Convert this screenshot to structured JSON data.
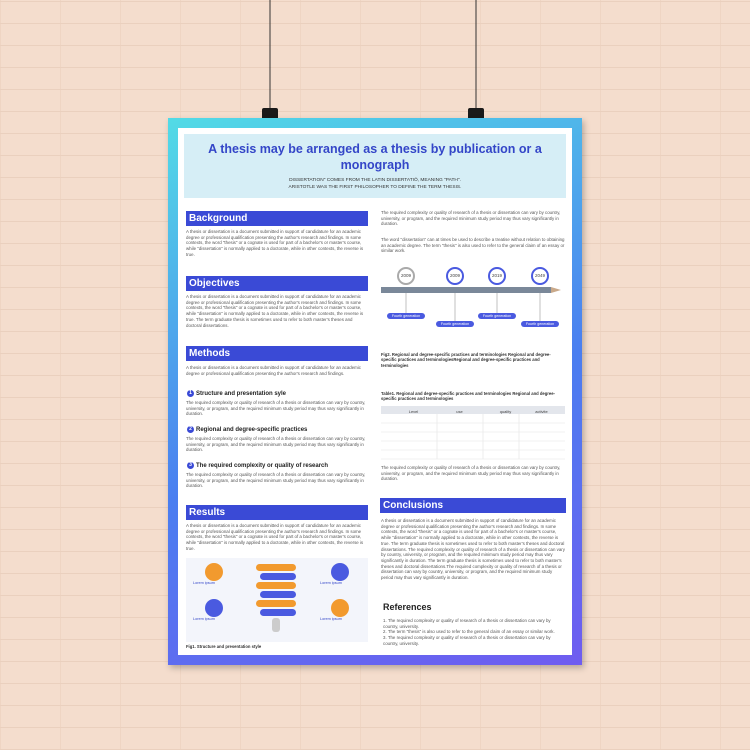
{
  "header": {
    "title": "A thesis may be arranged as a thesis by publication or a monograph",
    "subtitle": [
      "DISSERTATION\" COMES FROM THE LATIN DISSERTATIŌ, MEANING \"PATH\".",
      "ARISTOTLE WAS THE FIRST PHILOSOPHER TO DEFINE THE TERM THESIS."
    ]
  },
  "background": {
    "heading": "Background",
    "body": "A thesis or dissertation is a document submitted in support of candidature for an academic degree or professional qualification presenting the author's research and findings. In some contexts, the word \"thesis\" or a cognate is used for part of a bachelor's or master's course, while \"dissertation\" is normally applied to a doctorate, while in other contexts, the reverse is true."
  },
  "objectives": {
    "heading": "Objectives",
    "body": "A thesis or dissertation is a document submitted in support of candidature for an academic degree or professional qualification presenting the author's research and findings. In some contexts, the word \"thesis\" or a cognate is used for part of a bachelor's or master's course, while \"dissertation\" is normally applied to a doctorate, while in other contexts, the reverse is true. The term graduate thesis is sometimes used to refer to both master's theses and doctoral dissertations."
  },
  "methods": {
    "heading": "Methods",
    "intro": "A thesis or dissertation is a document submitted in support of candidature for an academic degree or professional qualification presenting the author's research and findings.",
    "items": [
      {
        "num": "1",
        "title": "Structure and presentation syle",
        "body": "The required complexity or quality of research of a thesis or dissertation can vary by country, university, or program, and the required minimum study period may thus vary significantly in duration."
      },
      {
        "num": "2",
        "title": "Regional and degree-specific practices",
        "body": "The required complexity or quality of research of a thesis or dissertation can vary by country, university, or program, and the required minimum study period may thus vary significantly in duration."
      },
      {
        "num": "3",
        "title": "The required complexity or quality of research",
        "body": "The required complexity or quality of research of a thesis or dissertation can vary by country, university, or program, and the required minimum study period may thus vary significantly in duration."
      }
    ]
  },
  "results": {
    "heading": "Results",
    "body": "A thesis or dissertation is a document submitted in support of candidature for an academic degree or professional qualification presenting the author's research and findings. In some contexts, the word \"thesis\" or a cognate is used for part of a bachelor's or master's course, while \"dissertation\" is normally applied to a doctorate, while in other contexts, the reverse is true.",
    "figure": {
      "labels": [
        "Lorem ipsum",
        "Lorem ipsum",
        "Lorem ipsum",
        "Lorem ipsum"
      ],
      "caption": "Fig1. Structure and presentation style"
    }
  },
  "right": {
    "paragraphs": [
      "The required complexity or quality of research of a thesis or dissertation can vary by country, university, or program, and the required minimum study period may thus vary significantly in duration.",
      "The word \"dissertation\" can at times be used to describe a treatise without relation to obtaining an academic degree. The term \"thesis\" is also used to refer to the general claim of an essay or similar work.",
      "The required complexity or quality of research of a thesis or dissertation can vary by country, university, or program, and the required minimum study period may thus vary significantly in duration."
    ],
    "timeline": [
      {
        "year": "2009",
        "label": "Fourth generation"
      },
      {
        "year": "2009",
        "label": "Fourth generation"
      },
      {
        "year": "2019",
        "label": "Fourth generation"
      },
      {
        "year": "2049",
        "label": "Fourth generation"
      }
    ],
    "figure_caption": "Fig2. Regional and degree-specific practices and terminologies Regional and degree-specific practices and terminologiesRegional and degree-specific practices and terminologies",
    "table": {
      "caption": "Table1. Regional and degree-specific practices and terminologies Regional and degree-specific practices and terminologies",
      "headers": [
        "Level",
        "use",
        "quality",
        "activite"
      ]
    }
  },
  "conclusions": {
    "heading": "Conclusions",
    "body": "A thesis or dissertation is a document submitted in support of candidature for an academic degree or professional qualification presenting the author's research and findings. In some contexts, the word \"thesis\" or a cognate is used for part of a bachelor's or master's course, while \"dissertation\" is normally applied to a doctorate, while in other contexts, the reverse is true. The term graduate thesis is sometimes used to refer to both master's theses and doctoral dissertations. The required complexity or quality of research of a thesis or dissertation can vary by country, university, or program, and the required minimum study period may thus vary significantly in duration. The term graduate thesis is sometimes used to refer to both master's theses and doctoral dissertations.The required complexity or quality of research of a thesis or dissertation can vary by country, university, or program, and the required minimum study period may thus vary significantly in duration."
  },
  "references": {
    "heading": "References",
    "items": [
      {
        "num": "1.",
        "text": "The required complexity or quality of research of a thesis or dissertation can vary by country, university."
      },
      {
        "num": "2.",
        "text": "The term \"thesis\" is also used to refer to the general claim of an essay or similar work."
      },
      {
        "num": "3.",
        "text": "The required complexity or quality of research of a thesis or dissertation can vary by country, university."
      }
    ]
  }
}
